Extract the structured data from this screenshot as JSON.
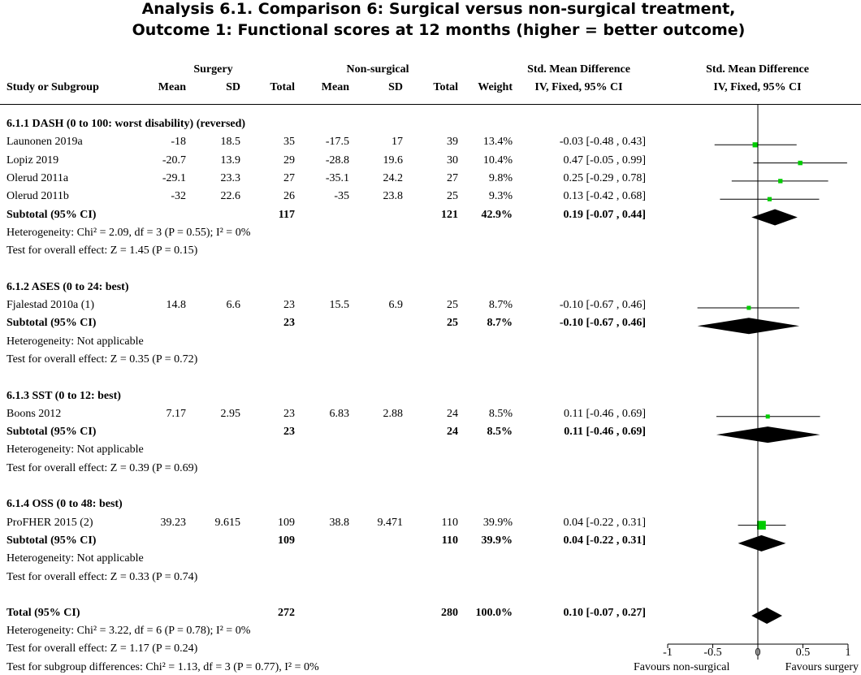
{
  "title": {
    "line1": "Analysis 6.1.   Comparison 6: Surgical versus non-surgical treatment,",
    "line2": "Outcome 1: Functional scores at 12 months (higher = better outcome)"
  },
  "headers": {
    "study": "Study or Subgroup",
    "surgery_group": "Surgery",
    "nonsurgical_group": "Non-surgical",
    "mean": "Mean",
    "sd": "SD",
    "total": "Total",
    "weight": "Weight",
    "smd_label": "Std. Mean Difference",
    "smd_method": "IV, Fixed, 95% CI",
    "plot_label": "Std. Mean Difference",
    "plot_method": "IV, Fixed, 95% CI"
  },
  "groups": [
    {
      "heading": "6.1.1 DASH (0 to 100: worst disability) (reversed)",
      "studies": [
        {
          "name": "Launonen 2019a",
          "s_mean": "-18",
          "s_sd": "18.5",
          "s_total": "35",
          "n_mean": "-17.5",
          "n_sd": "17",
          "n_total": "39",
          "weight": "13.4%",
          "ci": "-0.03 [-0.48 , 0.43]"
        },
        {
          "name": "Lopiz 2019",
          "s_mean": "-20.7",
          "s_sd": "13.9",
          "s_total": "29",
          "n_mean": "-28.8",
          "n_sd": "19.6",
          "n_total": "30",
          "weight": "10.4%",
          "ci": "0.47 [-0.05 , 0.99]"
        },
        {
          "name": "Olerud 2011a",
          "s_mean": "-29.1",
          "s_sd": "23.3",
          "s_total": "27",
          "n_mean": "-35.1",
          "n_sd": "24.2",
          "n_total": "27",
          "weight": "9.8%",
          "ci": "0.25 [-0.29 , 0.78]"
        },
        {
          "name": "Olerud 2011b",
          "s_mean": "-32",
          "s_sd": "22.6",
          "s_total": "26",
          "n_mean": "-35",
          "n_sd": "23.8",
          "n_total": "25",
          "weight": "9.3%",
          "ci": "0.13 [-0.42 , 0.68]"
        }
      ],
      "subtotal": {
        "label": "Subtotal (95% CI)",
        "s_total": "117",
        "n_total": "121",
        "weight": "42.9%",
        "ci": "0.19 [-0.07 , 0.44]"
      },
      "heterogeneity": "Heterogeneity: Chi² = 2.09, df = 3 (P = 0.55); I² = 0%",
      "overall": "Test for overall effect: Z = 1.45 (P = 0.15)"
    },
    {
      "heading": "6.1.2 ASES (0 to 24: best)",
      "studies": [
        {
          "name": "Fjalestad 2010a (1)",
          "s_mean": "14.8",
          "s_sd": "6.6",
          "s_total": "23",
          "n_mean": "15.5",
          "n_sd": "6.9",
          "n_total": "25",
          "weight": "8.7%",
          "ci": "-0.10 [-0.67 , 0.46]"
        }
      ],
      "subtotal": {
        "label": "Subtotal (95% CI)",
        "s_total": "23",
        "n_total": "25",
        "weight": "8.7%",
        "ci": "-0.10 [-0.67 , 0.46]"
      },
      "heterogeneity": "Heterogeneity: Not applicable",
      "overall": "Test for overall effect: Z = 0.35 (P = 0.72)"
    },
    {
      "heading": "6.1.3 SST (0 to 12: best)",
      "studies": [
        {
          "name": "Boons 2012",
          "s_mean": "7.17",
          "s_sd": "2.95",
          "s_total": "23",
          "n_mean": "6.83",
          "n_sd": "2.88",
          "n_total": "24",
          "weight": "8.5%",
          "ci": "0.11 [-0.46 , 0.69]"
        }
      ],
      "subtotal": {
        "label": "Subtotal (95% CI)",
        "s_total": "23",
        "n_total": "24",
        "weight": "8.5%",
        "ci": "0.11 [-0.46 , 0.69]"
      },
      "heterogeneity": "Heterogeneity: Not applicable",
      "overall": "Test for overall effect: Z = 0.39 (P = 0.69)"
    },
    {
      "heading": "6.1.4 OSS (0 to 48: best)",
      "studies": [
        {
          "name": "ProFHER 2015 (2)",
          "s_mean": "39.23",
          "s_sd": "9.615",
          "s_total": "109",
          "n_mean": "38.8",
          "n_sd": "9.471",
          "n_total": "110",
          "weight": "39.9%",
          "ci": "0.04 [-0.22 , 0.31]"
        }
      ],
      "subtotal": {
        "label": "Subtotal (95% CI)",
        "s_total": "109",
        "n_total": "110",
        "weight": "39.9%",
        "ci": "0.04 [-0.22 , 0.31]"
      },
      "heterogeneity": "Heterogeneity: Not applicable",
      "overall": "Test for overall effect: Z = 0.33 (P = 0.74)"
    }
  ],
  "total": {
    "label": "Total (95% CI)",
    "s_total": "272",
    "n_total": "280",
    "weight": "100.0%",
    "ci": "0.10 [-0.07 , 0.27]"
  },
  "footer": [
    "Heterogeneity: Chi² = 3.22, df = 6 (P = 0.78); I² = 0%",
    "Test for overall effect: Z = 1.17 (P = 0.24)",
    "Test for subgroup differences: Chi² = 1.13, df = 3 (P = 0.77), I² = 0%"
  ],
  "chart_data": {
    "type": "forest",
    "x_ticks": [
      "-1",
      "-0.5",
      "0",
      "0.5",
      "1"
    ],
    "xlim": [
      -1,
      1
    ],
    "favours_left": "Favours non-surgical",
    "favours_right": "Favours surgery",
    "colors": {
      "study_marker": "#00cc00",
      "summary_diamond": "#000000"
    },
    "studies": [
      {
        "name": "Launonen 2019a",
        "est": -0.03,
        "lo": -0.48,
        "hi": 0.43,
        "weight": 13.4
      },
      {
        "name": "Lopiz 2019",
        "est": 0.47,
        "lo": -0.05,
        "hi": 0.99,
        "weight": 10.4
      },
      {
        "name": "Olerud 2011a",
        "est": 0.25,
        "lo": -0.29,
        "hi": 0.78,
        "weight": 9.8
      },
      {
        "name": "Olerud 2011b",
        "est": 0.13,
        "lo": -0.42,
        "hi": 0.68,
        "weight": 9.3
      },
      {
        "name": "Fjalestad 2010a (1)",
        "est": -0.1,
        "lo": -0.67,
        "hi": 0.46,
        "weight": 8.7
      },
      {
        "name": "Boons 2012",
        "est": 0.11,
        "lo": -0.46,
        "hi": 0.69,
        "weight": 8.5
      },
      {
        "name": "ProFHER 2015 (2)",
        "est": 0.04,
        "lo": -0.22,
        "hi": 0.31,
        "weight": 39.9
      }
    ],
    "summaries": [
      {
        "name": "Subtotal 6.1.1",
        "est": 0.19,
        "lo": -0.07,
        "hi": 0.44
      },
      {
        "name": "Subtotal 6.1.2",
        "est": -0.1,
        "lo": -0.67,
        "hi": 0.46
      },
      {
        "name": "Subtotal 6.1.3",
        "est": 0.11,
        "lo": -0.46,
        "hi": 0.69
      },
      {
        "name": "Subtotal 6.1.4",
        "est": 0.04,
        "lo": -0.22,
        "hi": 0.31
      },
      {
        "name": "Total",
        "est": 0.1,
        "lo": -0.07,
        "hi": 0.27
      }
    ]
  }
}
